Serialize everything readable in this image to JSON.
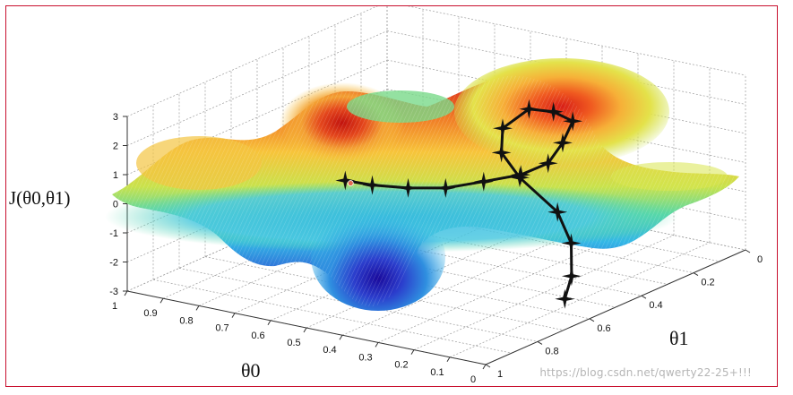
{
  "chart_data": {
    "type": "surface",
    "title": "",
    "zlabel": "J(θ0,θ1)",
    "xlabel": "θ0",
    "ylabel": "θ1",
    "zlim": [
      -3,
      3
    ],
    "z_ticks": [
      "3",
      "2",
      "1",
      "0",
      "-1",
      "-2",
      "-3"
    ],
    "theta0_ticks": [
      "1",
      "0.9",
      "0.8",
      "0.7",
      "0.6",
      "0.5",
      "0.4",
      "0.3",
      "0.2",
      "0.1",
      "0"
    ],
    "theta1_ticks": [
      "0",
      "0.2",
      "0.4",
      "0.6",
      "0.8",
      "1"
    ],
    "grid": true,
    "colormap": [
      "#1a0a9c",
      "#2f62d6",
      "#33b7e6",
      "#58d8a6",
      "#c9e24c",
      "#f7c43a",
      "#f07a25",
      "#d81f17"
    ],
    "path": {
      "color": "#111111",
      "points": [
        [
          0.66,
          0.63,
          0.2
        ],
        [
          0.57,
          0.65,
          0.35
        ],
        [
          0.47,
          0.65,
          0.5
        ],
        [
          0.38,
          0.63,
          0.65
        ],
        [
          0.31,
          0.58,
          0.85
        ],
        [
          0.25,
          0.52,
          1.0
        ],
        [
          0.21,
          0.47,
          1.3
        ],
        [
          0.22,
          0.4,
          1.7
        ],
        [
          0.25,
          0.32,
          2.05
        ],
        [
          0.34,
          0.27,
          1.95
        ],
        [
          0.43,
          0.24,
          1.7
        ],
        [
          0.46,
          0.3,
          1.2
        ],
        [
          0.42,
          0.36,
          0.7
        ],
        [
          0.34,
          0.4,
          0.2
        ],
        [
          0.22,
          0.42,
          -0.6
        ],
        [
          0.16,
          0.45,
          -1.4
        ],
        [
          0.13,
          0.49,
          -2.3
        ],
        [
          0.12,
          0.53,
          -2.9
        ]
      ]
    }
  },
  "watermark": "https://blog.csdn.net/qwerty22-25+!!!"
}
